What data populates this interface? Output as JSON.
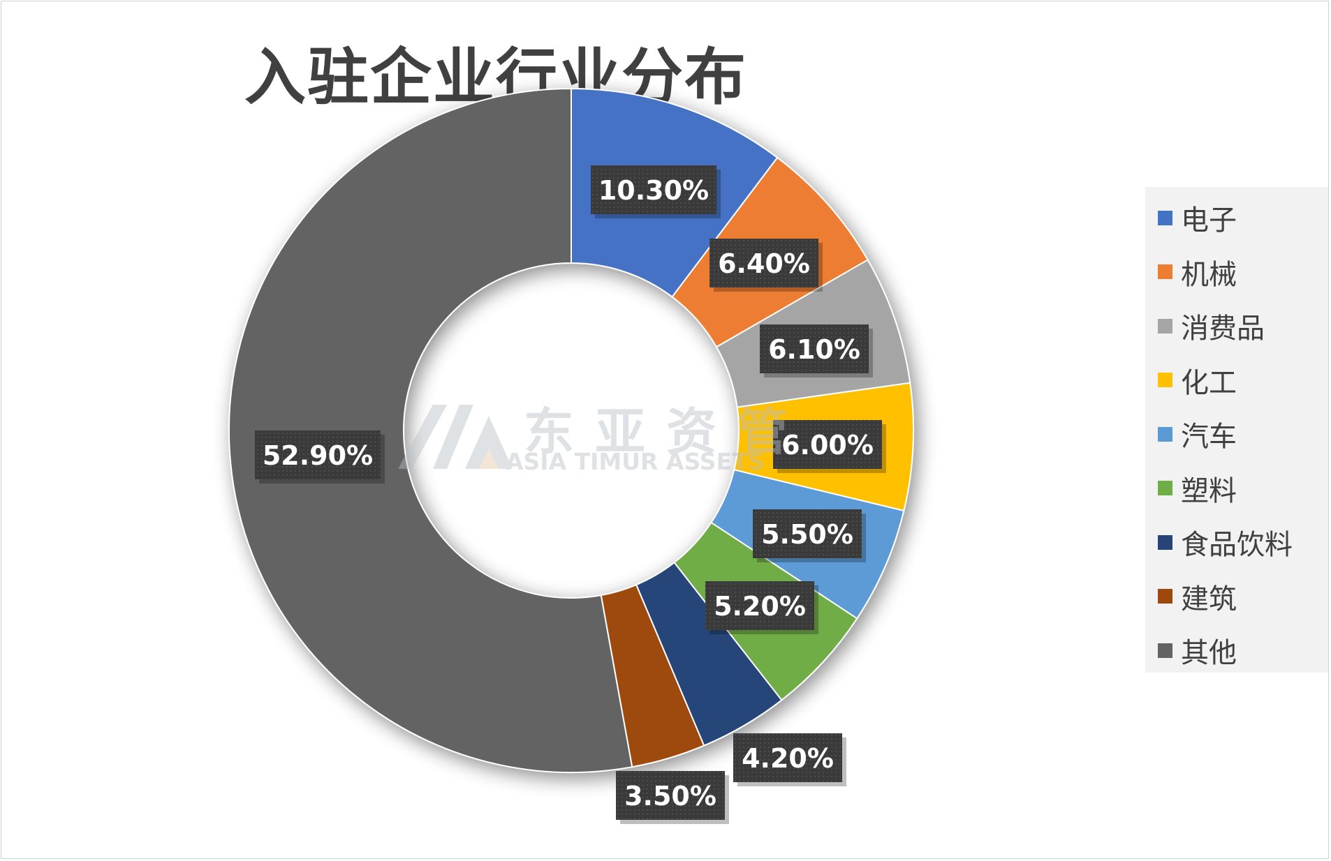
{
  "chart_data": {
    "type": "pie",
    "variant": "doughnut",
    "title": "入驻企业行业分布",
    "categories": [
      "电子",
      "机械",
      "消费品",
      "化工",
      "汽车",
      "塑料",
      "食品饮料",
      "建筑",
      "其他"
    ],
    "values": [
      10.3,
      6.4,
      6.1,
      6.0,
      5.5,
      5.2,
      4.2,
      3.5,
      52.9
    ],
    "data_labels": [
      "10.30%",
      "6.40%",
      "6.10%",
      "6.00%",
      "5.50%",
      "5.20%",
      "4.20%",
      "3.50%",
      "52.90%"
    ],
    "colors": [
      "#4472c4",
      "#ed7d31",
      "#a5a5a5",
      "#ffc000",
      "#5b9bd5",
      "#70ad47",
      "#264478",
      "#9e480e",
      "#636363"
    ],
    "legend_position": "right"
  },
  "watermark": {
    "cn": "东亚资管",
    "en": "ASIA TIMUR ASSETS"
  }
}
